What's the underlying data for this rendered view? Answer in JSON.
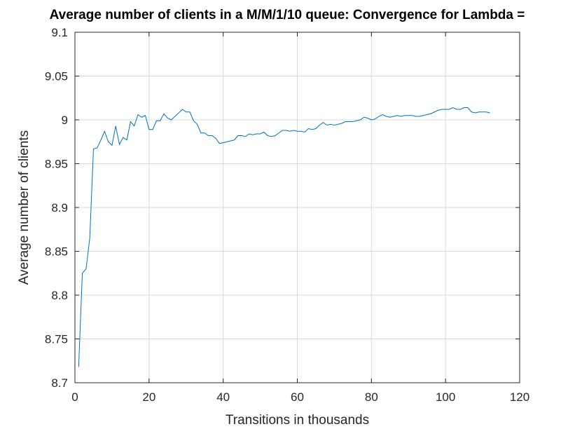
{
  "chart_data": {
    "type": "line",
    "title": "Average number of clients in a M/M/1/10 queue: Convergence for Lambda =",
    "xlabel": "Transitions in thousands",
    "ylabel": "Average number of clients",
    "xlim": [
      0,
      120
    ],
    "ylim": [
      8.7,
      9.1
    ],
    "xticks": [
      0,
      20,
      40,
      60,
      80,
      100,
      120
    ],
    "xtick_labels": [
      "0",
      "20",
      "40",
      "60",
      "80",
      "100",
      "120"
    ],
    "yticks": [
      8.7,
      8.75,
      8.8,
      8.85,
      8.9,
      8.95,
      9.0,
      9.05,
      9.1
    ],
    "ytick_labels": [
      "8.7",
      "8.75",
      "8.8",
      "8.85",
      "8.9",
      "8.95",
      "9",
      "9.05",
      "9.1"
    ],
    "grid": true,
    "series": [
      {
        "color": "#0072bd",
        "x": [
          1,
          2,
          3,
          4,
          5,
          6,
          7,
          8,
          9,
          10,
          11,
          12,
          13,
          14,
          15,
          16,
          17,
          18,
          19,
          20,
          21,
          22,
          23,
          24,
          25,
          26,
          27,
          28,
          29,
          30,
          31,
          32,
          33,
          34,
          35,
          36,
          37,
          38,
          39,
          40,
          41,
          42,
          43,
          44,
          45,
          46,
          47,
          48,
          49,
          50,
          51,
          52,
          53,
          54,
          55,
          56,
          57,
          58,
          59,
          60,
          61,
          62,
          63,
          64,
          65,
          66,
          67,
          68,
          69,
          70,
          71,
          72,
          73,
          74,
          75,
          76,
          77,
          78,
          79,
          80,
          81,
          82,
          83,
          84,
          85,
          86,
          87,
          88,
          89,
          90,
          91,
          92,
          93,
          94,
          95,
          96,
          97,
          98,
          99,
          100,
          101,
          102,
          103,
          104,
          105,
          106,
          107,
          108,
          109,
          110,
          111,
          112
        ],
        "y": [
          8.718,
          8.825,
          8.83,
          8.865,
          8.967,
          8.968,
          8.977,
          8.987,
          8.975,
          8.971,
          8.993,
          8.972,
          8.98,
          8.977,
          8.998,
          8.993,
          9.006,
          9.003,
          9.005,
          8.989,
          8.989,
          8.999,
          8.999,
          9.007,
          9.002,
          9.0,
          9.004,
          9.008,
          9.012,
          9.009,
          9.009,
          8.999,
          8.995,
          8.985,
          8.985,
          8.982,
          8.982,
          8.979,
          8.973,
          8.974,
          8.975,
          8.976,
          8.977,
          8.982,
          8.982,
          8.981,
          8.984,
          8.983,
          8.984,
          8.984,
          8.986,
          8.982,
          8.981,
          8.982,
          8.985,
          8.988,
          8.988,
          8.987,
          8.988,
          8.987,
          8.987,
          8.986,
          8.99,
          8.989,
          8.99,
          8.994,
          8.997,
          8.994,
          8.995,
          8.994,
          8.995,
          8.996,
          8.998,
          8.998,
          8.998,
          8.999,
          9.0,
          9.003,
          9.002,
          9.0,
          9.001,
          9.004,
          9.006,
          9.004,
          9.003,
          9.004,
          9.005,
          9.004,
          9.005,
          9.005,
          9.005,
          9.004,
          9.004,
          9.005,
          9.006,
          9.007,
          9.009,
          9.011,
          9.012,
          9.012,
          9.012,
          9.014,
          9.012,
          9.012,
          9.014,
          9.014,
          9.009,
          9.008,
          9.009,
          9.009,
          9.009,
          9.008
        ]
      }
    ]
  }
}
